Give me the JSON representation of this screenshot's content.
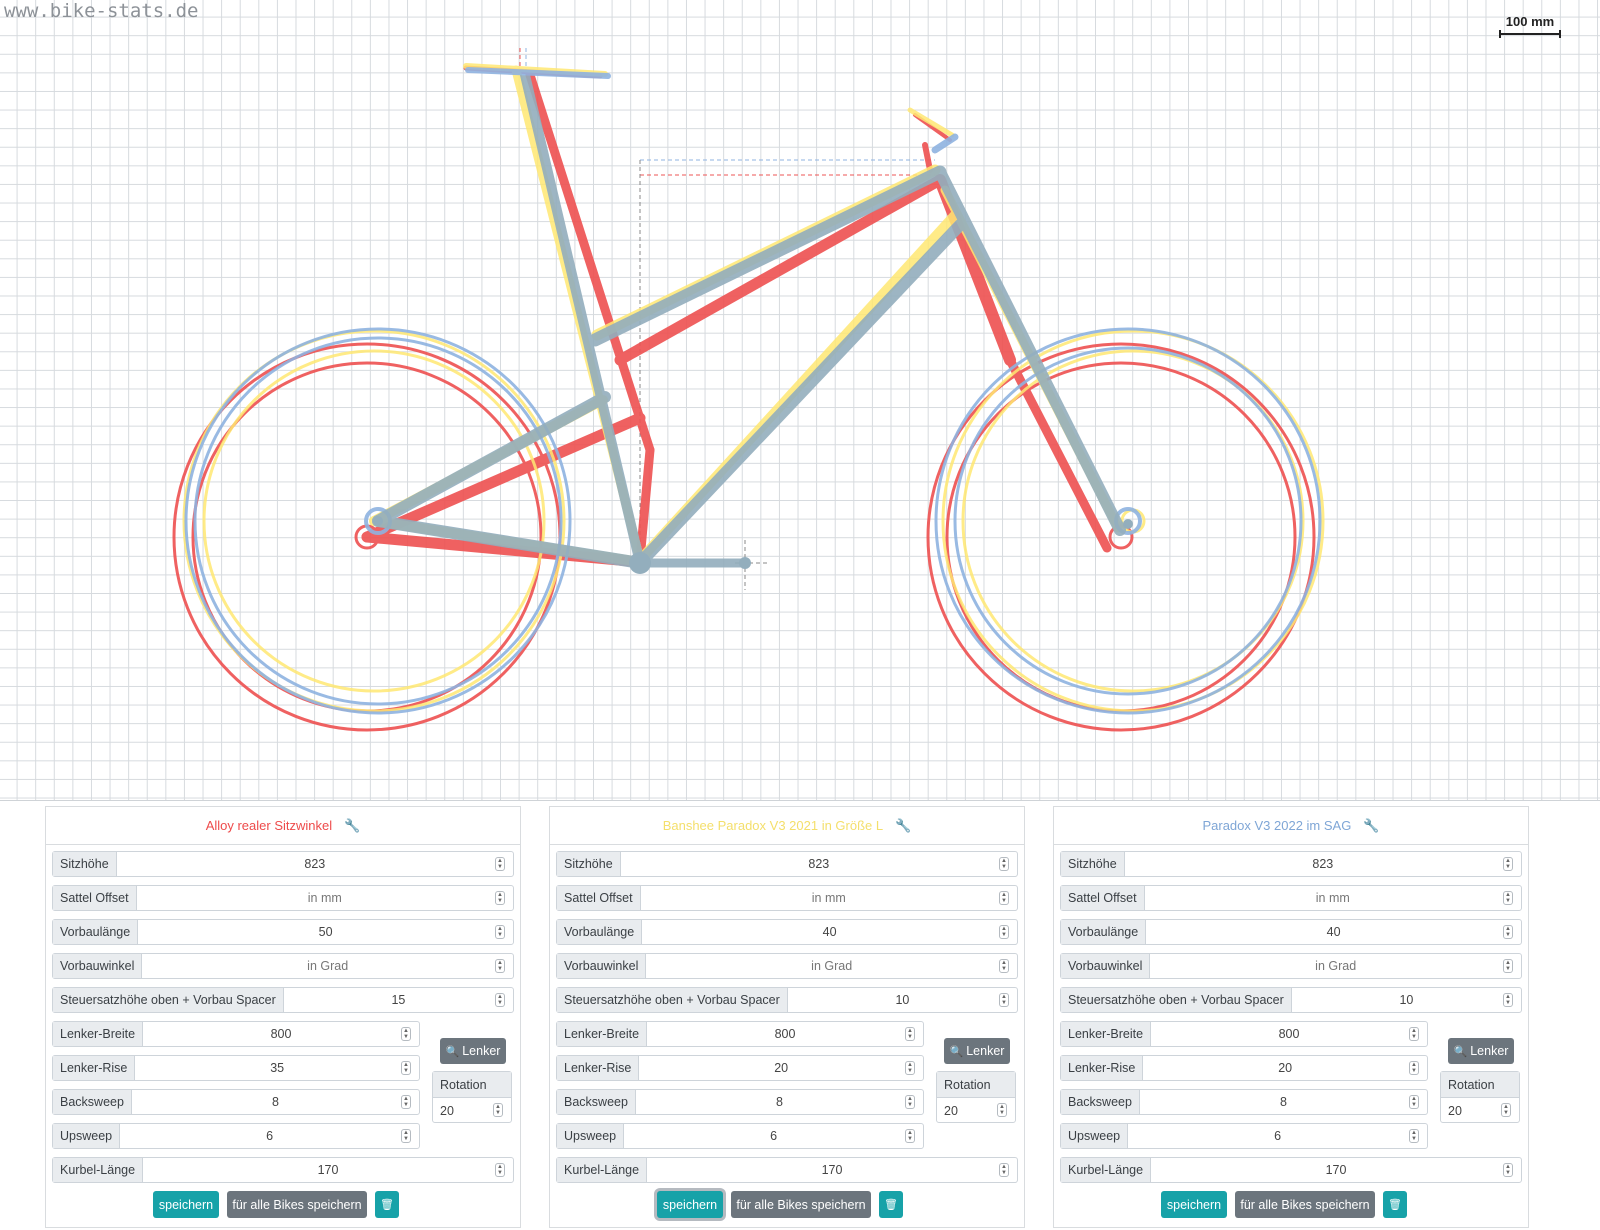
{
  "watermark": "www.bike-stats.de",
  "scale_label": "100 mm",
  "colors": {
    "red": "#ee5454",
    "yellow": "#ffe873",
    "blue": "#8fb3e0",
    "grid": "#d6dade",
    "teal": "#17a2a8",
    "gray": "#6c757d"
  },
  "icons": {
    "wrench": "wrench-icon",
    "search": "search-icon",
    "trash": "trash-icon",
    "spinner": "spin-icon"
  },
  "panels": [
    {
      "title": "Alloy realer Sitzwinkel",
      "title_color": "#ee4b4b",
      "sitzhoehe": {
        "label": "Sitzhöhe",
        "value": "823"
      },
      "sattel_offset": {
        "label": "Sattel Offset",
        "placeholder": "in mm"
      },
      "vorbaulaenge": {
        "label": "Vorbaulänge",
        "value": "50"
      },
      "vorbauwinkel": {
        "label": "Vorbauwinkel",
        "placeholder": "in Grad"
      },
      "steuersatz": {
        "label": "Steuersatzhöhe oben + Vorbau Spacer",
        "value": "15"
      },
      "lenker_breite": {
        "label": "Lenker-Breite",
        "value": "800"
      },
      "lenker_rise": {
        "label": "Lenker-Rise",
        "value": "35"
      },
      "backsweep": {
        "label": "Backsweep",
        "value": "8"
      },
      "upsweep": {
        "label": "Upsweep",
        "value": "6"
      },
      "kurbel": {
        "label": "Kurbel-Länge",
        "value": "170"
      },
      "lenker_button": "Lenker",
      "rotation": {
        "label": "Rotation",
        "value": "20"
      },
      "save": "speichern",
      "save_all": "für alle Bikes speichern"
    },
    {
      "title": "Banshee Paradox V3 2021 in Größe L",
      "title_color": "#f4df6b",
      "sitzhoehe": {
        "label": "Sitzhöhe",
        "value": "823"
      },
      "sattel_offset": {
        "label": "Sattel Offset",
        "placeholder": "in mm"
      },
      "vorbaulaenge": {
        "label": "Vorbaulänge",
        "value": "40"
      },
      "vorbauwinkel": {
        "label": "Vorbauwinkel",
        "placeholder": "in Grad"
      },
      "steuersatz": {
        "label": "Steuersatzhöhe oben + Vorbau Spacer",
        "value": "10"
      },
      "lenker_breite": {
        "label": "Lenker-Breite",
        "value": "800"
      },
      "lenker_rise": {
        "label": "Lenker-Rise",
        "value": "20"
      },
      "backsweep": {
        "label": "Backsweep",
        "value": "8"
      },
      "upsweep": {
        "label": "Upsweep",
        "value": "6"
      },
      "kurbel": {
        "label": "Kurbel-Länge",
        "value": "170"
      },
      "lenker_button": "Lenker",
      "rotation": {
        "label": "Rotation",
        "value": "20"
      },
      "save": "speichern",
      "save_all": "für alle Bikes speichern"
    },
    {
      "title": "Paradox V3 2022 im SAG",
      "title_color": "#7fa6d6",
      "sitzhoehe": {
        "label": "Sitzhöhe",
        "value": "823"
      },
      "sattel_offset": {
        "label": "Sattel Offset",
        "placeholder": "in mm"
      },
      "vorbaulaenge": {
        "label": "Vorbaulänge",
        "value": "40"
      },
      "vorbauwinkel": {
        "label": "Vorbauwinkel",
        "placeholder": "in Grad"
      },
      "steuersatz": {
        "label": "Steuersatzhöhe oben + Vorbau Spacer",
        "value": "10"
      },
      "lenker_breite": {
        "label": "Lenker-Breite",
        "value": "800"
      },
      "lenker_rise": {
        "label": "Lenker-Rise",
        "value": "20"
      },
      "backsweep": {
        "label": "Backsweep",
        "value": "8"
      },
      "upsweep": {
        "label": "Upsweep",
        "value": "6"
      },
      "kurbel": {
        "label": "Kurbel-Länge",
        "value": "170"
      },
      "lenker_button": "Lenker",
      "rotation": {
        "label": "Rotation",
        "value": "20"
      },
      "save": "speichern",
      "save_all": "für alle Bikes speichern"
    }
  ]
}
